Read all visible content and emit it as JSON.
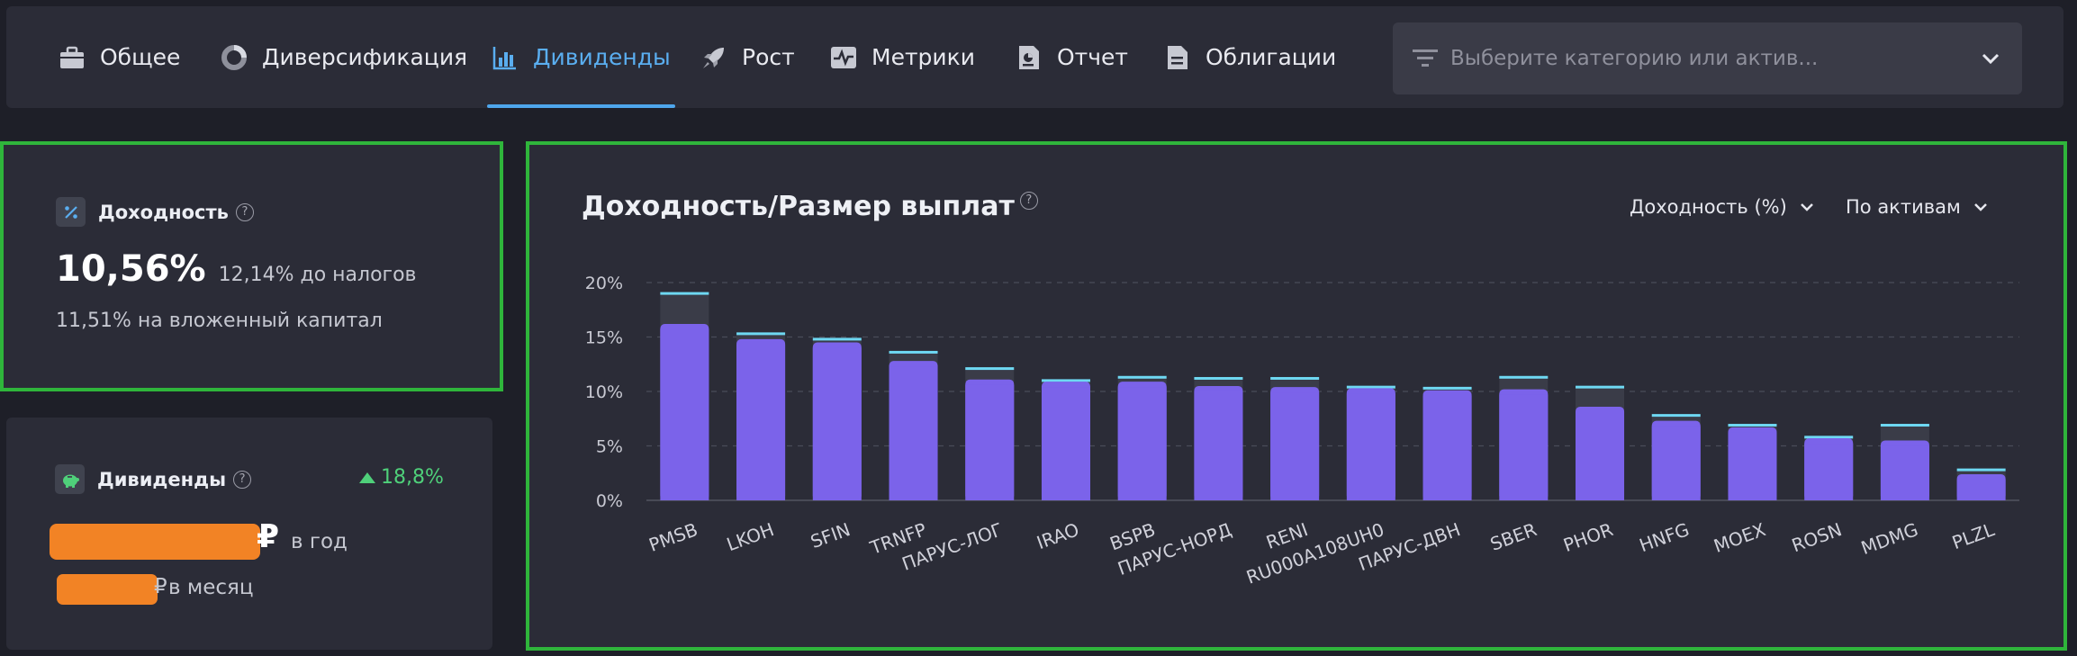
{
  "nav": {
    "tabs": [
      {
        "id": "general",
        "label": "Общее",
        "icon": "briefcase-icon",
        "active": false
      },
      {
        "id": "diversification",
        "label": "Диверсификация",
        "icon": "donut-chart-icon",
        "active": false
      },
      {
        "id": "dividends",
        "label": "Дивиденды",
        "icon": "bar-chart-icon",
        "active": true
      },
      {
        "id": "growth",
        "label": "Рост",
        "icon": "rocket-icon",
        "active": false
      },
      {
        "id": "metrics",
        "label": "Метрики",
        "icon": "pulse-icon",
        "active": false
      },
      {
        "id": "report",
        "label": "Отчет",
        "icon": "report-icon",
        "active": false
      },
      {
        "id": "bonds",
        "label": "Облигации",
        "icon": "document-icon",
        "active": false
      }
    ],
    "search_placeholder": "Выберите категорию или актив..."
  },
  "yield_card": {
    "title": "Доходность",
    "value": "10,56%",
    "before_tax": "12,14% до налогов",
    "on_capital": "11,51% на вложенный капитал"
  },
  "dividends_card": {
    "title": "Дивиденды",
    "change": "18,8%",
    "currency": "₽",
    "per_year": "в год",
    "per_month": "в месяц"
  },
  "chart_panel": {
    "title": "Доходность/Размер выплат",
    "metric_dropdown": "Доходность (%)",
    "group_dropdown": "По активам"
  },
  "colors": {
    "accent": "#4ea6ec",
    "bar": "#7b63ea",
    "bar_top": "#6ed8f2",
    "positive": "#4fd07a",
    "highlight_border": "#2fb53b",
    "redaction": "#f28325"
  },
  "chart_data": {
    "type": "bar",
    "categories": [
      "PMSB",
      "LKOH",
      "SFIN",
      "TRNFP",
      "ПАРУС-ЛОГ",
      "IRAO",
      "BSPB",
      "ПАРУС-НОРД",
      "RENI",
      "RU000A108UH0",
      "ПАРУС-ДВН",
      "SBER",
      "PHOR",
      "HNFG",
      "MOEX",
      "ROSN",
      "MDMG",
      "PLZL"
    ],
    "series": [
      {
        "values": [
          16.2,
          14.8,
          14.5,
          12.8,
          11.1,
          10.9,
          10.9,
          10.5,
          10.4,
          10.3,
          10.1,
          10.2,
          8.6,
          7.3,
          6.7,
          5.7,
          5.5,
          2.4
        ]
      },
      {
        "values": [
          19.0,
          15.3,
          14.8,
          13.6,
          12.1,
          11.0,
          11.3,
          11.2,
          11.2,
          10.4,
          10.3,
          11.3,
          10.4,
          7.8,
          6.9,
          5.8,
          6.9,
          2.8
        ]
      }
    ],
    "ylim": [
      0,
      20
    ],
    "yticks": [
      "0%",
      "5%",
      "10%",
      "15%",
      "20%"
    ],
    "grid": true,
    "xlabel": "",
    "ylabel": ""
  }
}
